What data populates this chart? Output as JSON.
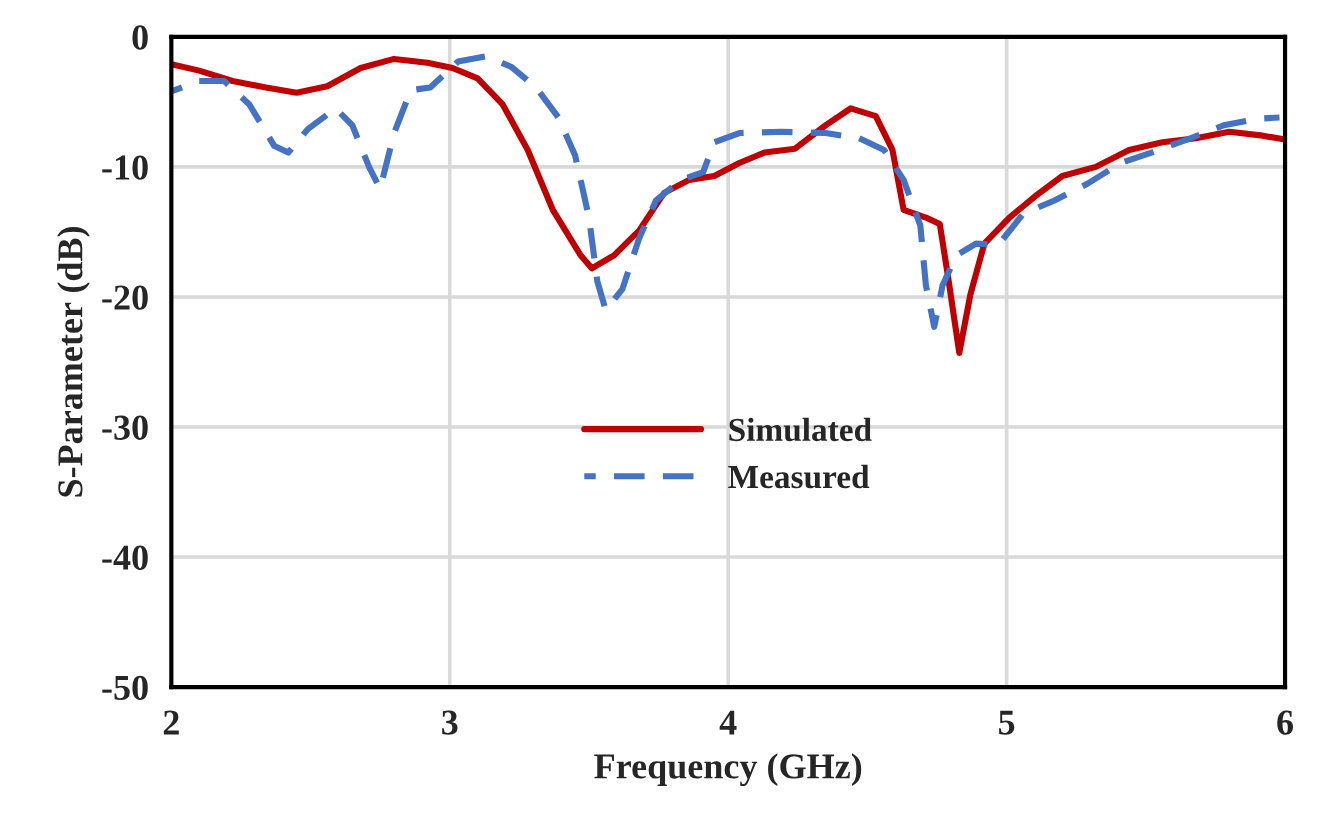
{
  "chart_data": {
    "type": "line",
    "xlabel": "Frequency (GHz)",
    "ylabel": "S-Parameter (dB)",
    "xlim": [
      2,
      6
    ],
    "xticks": [
      2,
      3,
      4,
      5,
      6
    ],
    "ylim": [
      -50,
      0
    ],
    "yticks": [
      -50,
      -40,
      -30,
      -20,
      -10,
      0
    ],
    "grid": true,
    "legend": "center",
    "marker": "none",
    "series": [
      {
        "name": "Simulated",
        "color": "#c00000",
        "line_style": "solid",
        "x": [
          2.0,
          2.1,
          2.22,
          2.34,
          2.45,
          2.56,
          2.68,
          2.8,
          2.92,
          3.01,
          3.1,
          3.19,
          3.28,
          3.37,
          3.47,
          3.51,
          3.59,
          3.68,
          3.77,
          3.86,
          3.95,
          4.04,
          4.13,
          4.24,
          4.35,
          4.44,
          4.53,
          4.59,
          4.63,
          4.71,
          4.76,
          4.79,
          4.83,
          4.87,
          4.92,
          5.01,
          5.1,
          5.2,
          5.32,
          5.44,
          5.56,
          5.68,
          5.8,
          5.92,
          6.0
        ],
        "values": [
          -2.1,
          -2.6,
          -3.4,
          -3.9,
          -4.3,
          -3.8,
          -2.4,
          -1.7,
          -2.0,
          -2.4,
          -3.2,
          -5.2,
          -8.7,
          -13.3,
          -16.8,
          -17.8,
          -16.8,
          -14.9,
          -12.0,
          -11.0,
          -10.7,
          -9.7,
          -8.9,
          -8.6,
          -6.8,
          -5.5,
          -6.1,
          -8.7,
          -13.3,
          -13.9,
          -14.4,
          -18.5,
          -24.3,
          -19.8,
          -15.9,
          -13.9,
          -12.3,
          -10.7,
          -10.0,
          -8.7,
          -8.1,
          -7.8,
          -7.3,
          -7.6,
          -7.9
        ]
      },
      {
        "name": "Measured",
        "color": "#4472c4",
        "line_style": "dashed",
        "x": [
          2.0,
          2.1,
          2.19,
          2.28,
          2.37,
          2.42,
          2.49,
          2.59,
          2.65,
          2.71,
          2.75,
          2.8,
          2.86,
          2.93,
          3.03,
          3.13,
          3.22,
          3.31,
          3.39,
          3.45,
          3.5,
          3.53,
          3.56,
          3.62,
          3.68,
          3.74,
          3.83,
          3.91,
          3.95,
          4.04,
          4.19,
          4.35,
          4.47,
          4.56,
          4.63,
          4.69,
          4.71,
          4.74,
          4.77,
          4.82,
          4.89,
          4.97,
          5.06,
          5.17,
          5.29,
          5.41,
          5.52,
          5.66,
          5.78,
          5.9,
          5.98
        ],
        "values": [
          -4.2,
          -3.4,
          -3.4,
          -5.2,
          -8.4,
          -8.9,
          -7.1,
          -5.5,
          -6.8,
          -10.0,
          -11.7,
          -7.4,
          -4.1,
          -3.9,
          -1.9,
          -1.5,
          -2.3,
          -3.9,
          -6.2,
          -9.1,
          -13.9,
          -18.8,
          -21.0,
          -19.4,
          -15.5,
          -12.6,
          -11.0,
          -10.4,
          -8.1,
          -7.4,
          -7.3,
          -7.4,
          -7.8,
          -8.7,
          -11.0,
          -14.5,
          -19.1,
          -22.3,
          -19.1,
          -16.8,
          -15.9,
          -16.0,
          -13.6,
          -12.6,
          -11.3,
          -9.7,
          -8.9,
          -7.8,
          -6.8,
          -6.3,
          -6.2
        ]
      }
    ]
  }
}
